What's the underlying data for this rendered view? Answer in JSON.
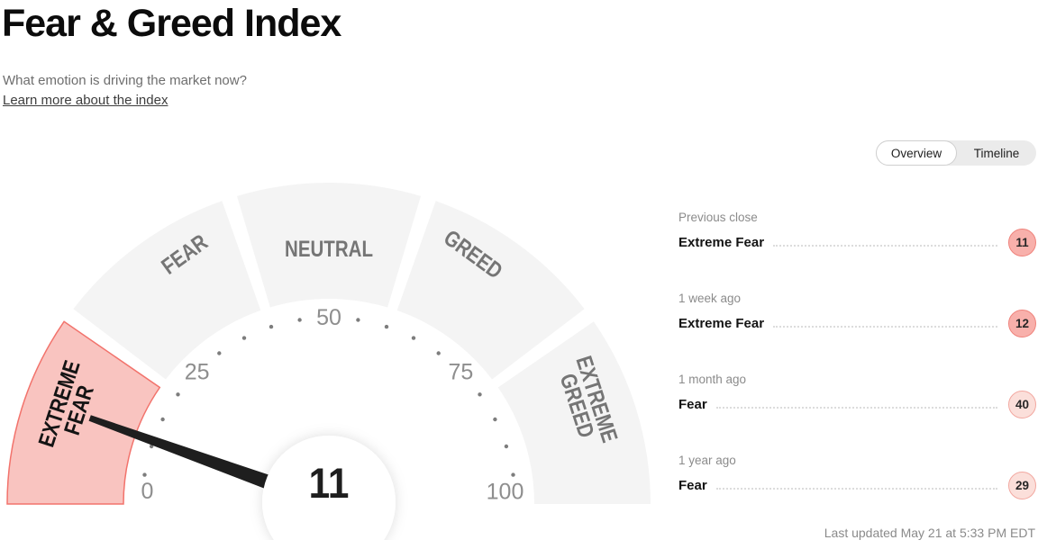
{
  "header": {
    "title": "Fear & Greed Index",
    "subtitle": "What emotion is driving the market now?",
    "learn_more": "Learn more about the index"
  },
  "toggle": {
    "overview": "Overview",
    "timeline": "Timeline"
  },
  "gauge": {
    "value": 11,
    "value_label": "11",
    "range": [
      0,
      100
    ],
    "segments": [
      {
        "label_lines": [
          "EXTREME",
          "FEAR"
        ],
        "highlighted": true
      },
      {
        "label_lines": [
          "FEAR"
        ],
        "highlighted": false
      },
      {
        "label_lines": [
          "NEUTRAL"
        ],
        "highlighted": false
      },
      {
        "label_lines": [
          "GREED"
        ],
        "highlighted": false
      },
      {
        "label_lines": [
          "EXTREME",
          "GREED"
        ],
        "highlighted": false
      }
    ],
    "tick_labels": [
      "0",
      "25",
      "50",
      "75",
      "100"
    ],
    "colors": {
      "segment": "#f4f4f4",
      "segment_label": "#757575",
      "highlight_fill": "#f9c4c0",
      "highlight_stroke": "#f2736c",
      "highlight_label": "#141414",
      "tick_dot": "#7d7d7d",
      "tick_label": "#8e8e8e",
      "needle": "#1e1e1e",
      "value_text": "#1e1e1e"
    }
  },
  "chart_data": {
    "type": "gauge",
    "title": "Fear & Greed Index",
    "value": 11,
    "range": [
      0,
      100
    ],
    "zone_labels": [
      "EXTREME FEAR",
      "FEAR",
      "NEUTRAL",
      "GREED",
      "EXTREME GREED"
    ],
    "tick_labels": [
      0,
      25,
      50,
      75,
      100
    ],
    "current_zone": "EXTREME FEAR"
  },
  "history": {
    "rows": [
      {
        "period": "Previous close",
        "label": "Extreme Fear",
        "value": "11",
        "tone": "strong"
      },
      {
        "period": "1 week ago",
        "label": "Extreme Fear",
        "value": "12",
        "tone": "strong"
      },
      {
        "period": "1 month ago",
        "label": "Fear",
        "value": "40",
        "tone": "light"
      },
      {
        "period": "1 year ago",
        "label": "Fear",
        "value": "29",
        "tone": "light"
      }
    ],
    "badge_colors": {
      "strong": {
        "fill": "#f8b0ab",
        "border": "#ef837c"
      },
      "light": {
        "fill": "#fbdfda",
        "border": "#f2a8a0"
      }
    }
  },
  "footer": {
    "last_updated": "Last updated May 21 at 5:33 PM EDT"
  }
}
